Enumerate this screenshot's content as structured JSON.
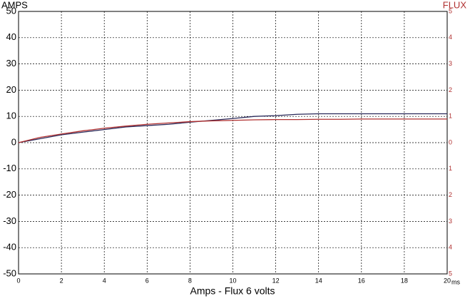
{
  "chart_data": {
    "type": "line",
    "title": "Amps - Flux 6 volts",
    "y_label": "AMPS",
    "y2_label": "FLUX",
    "x_unit": "ms",
    "x": [
      0,
      1,
      2,
      3,
      4,
      5,
      6,
      7,
      8,
      9,
      10,
      11,
      12,
      13,
      14,
      15,
      16,
      17,
      18,
      19,
      20
    ],
    "series": [
      {
        "color": "#2a2a5a",
        "values": [
          0,
          1.5,
          3,
          4,
          5,
          6,
          6.5,
          7,
          7.8,
          8.5,
          9.2,
          10,
          10.3,
          10.8,
          11,
          11,
          11,
          11,
          11,
          11,
          11
        ]
      },
      {
        "color": "#b03030",
        "axis": "y2",
        "values": [
          0,
          0.2,
          0.33,
          0.45,
          0.55,
          0.63,
          0.7,
          0.75,
          0.8,
          0.83,
          0.85,
          0.87,
          0.88,
          0.88,
          0.89,
          0.89,
          0.9,
          0.9,
          0.9,
          0.9,
          0.9
        ]
      }
    ],
    "xlim": [
      0,
      20
    ],
    "xticks": [
      0,
      2,
      4,
      6,
      8,
      10,
      12,
      14,
      16,
      18,
      20
    ],
    "ylim": [
      -50,
      50
    ],
    "yticks": [
      50,
      40,
      30,
      20,
      10,
      0,
      -10,
      -20,
      -30,
      -40,
      -50
    ],
    "y2lim": [
      -5,
      5
    ],
    "y2ticks": [
      5,
      4,
      3,
      2,
      1,
      0,
      {
        "value": -1,
        "label": "1"
      },
      {
        "value": -2,
        "label": "2"
      },
      {
        "value": -3,
        "label": "3"
      },
      {
        "value": -4,
        "label": "4"
      },
      {
        "value": -5,
        "label": "5"
      }
    ],
    "grid": true
  }
}
